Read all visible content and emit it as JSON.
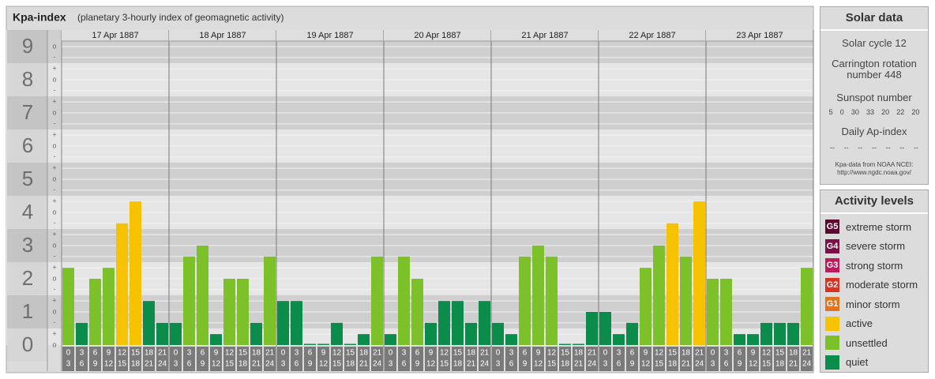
{
  "title": "Kpa-index",
  "subtitle": "(planetary 3-hourly index of geomagnetic activity)",
  "chart_data": {
    "type": "bar",
    "ylim": [
      0,
      9
    ],
    "yticks": [
      0,
      1,
      2,
      3,
      4,
      5,
      6,
      7,
      8,
      9
    ],
    "minor_yticks": [
      {
        "value": 9,
        "label": "o"
      },
      {
        "value": 8.67,
        "label": "-"
      },
      {
        "value": 8.33,
        "label": "+"
      },
      {
        "value": 8,
        "label": "o"
      },
      {
        "value": 7.67,
        "label": "-"
      },
      {
        "value": 7.33,
        "label": "+"
      },
      {
        "value": 7,
        "label": "o"
      },
      {
        "value": 6.67,
        "label": "-"
      },
      {
        "value": 6.33,
        "label": "+"
      },
      {
        "value": 6,
        "label": "o"
      },
      {
        "value": 5.67,
        "label": "-"
      },
      {
        "value": 5.33,
        "label": "+"
      },
      {
        "value": 5,
        "label": "o"
      },
      {
        "value": 4.67,
        "label": "-"
      },
      {
        "value": 4.33,
        "label": "+"
      },
      {
        "value": 4,
        "label": "o"
      },
      {
        "value": 3.67,
        "label": "-"
      },
      {
        "value": 3.33,
        "label": "+"
      },
      {
        "value": 3,
        "label": "o"
      },
      {
        "value": 2.67,
        "label": "-"
      },
      {
        "value": 2.33,
        "label": "+"
      },
      {
        "value": 2,
        "label": "o"
      },
      {
        "value": 1.67,
        "label": "-"
      },
      {
        "value": 1.33,
        "label": "+"
      },
      {
        "value": 1,
        "label": "o"
      },
      {
        "value": 0.67,
        "label": "-"
      },
      {
        "value": 0.33,
        "label": "+"
      },
      {
        "value": 0,
        "label": "o"
      }
    ],
    "hour_bins": [
      0,
      3,
      6,
      9,
      12,
      15,
      18,
      21,
      24
    ],
    "days": [
      {
        "date": "17 Apr 1887",
        "values": [
          2.33,
          0.67,
          2,
          2.33,
          3.67,
          4.33,
          1.33,
          0.67
        ],
        "colors": [
          "#7dc12a",
          "#0b8c4a",
          "#7dc12a",
          "#7dc12a",
          "#f7c300",
          "#f7c300",
          "#0b8c4a",
          "#0b8c4a"
        ]
      },
      {
        "date": "18 Apr 1887",
        "values": [
          0.67,
          2.67,
          3,
          0.33,
          2,
          2,
          0.67,
          2.67
        ],
        "colors": [
          "#0b8c4a",
          "#7dc12a",
          "#7dc12a",
          "#0b8c4a",
          "#7dc12a",
          "#7dc12a",
          "#0b8c4a",
          "#7dc12a"
        ]
      },
      {
        "date": "19 Apr 1887",
        "values": [
          1.33,
          1.33,
          0,
          0,
          0.67,
          0,
          0.33,
          2.67
        ],
        "colors": [
          "#0b8c4a",
          "#0b8c4a",
          "#0b8c4a",
          "#0b8c4a",
          "#0b8c4a",
          "#0b8c4a",
          "#0b8c4a",
          "#7dc12a"
        ]
      },
      {
        "date": "20 Apr 1887",
        "values": [
          0.33,
          2.67,
          2,
          0.67,
          1.33,
          1.33,
          0.67,
          1.33
        ],
        "colors": [
          "#0b8c4a",
          "#7dc12a",
          "#7dc12a",
          "#0b8c4a",
          "#0b8c4a",
          "#0b8c4a",
          "#0b8c4a",
          "#0b8c4a"
        ]
      },
      {
        "date": "21 Apr 1887",
        "values": [
          0.67,
          0.33,
          2.67,
          3,
          2.67,
          0,
          0,
          1
        ],
        "colors": [
          "#0b8c4a",
          "#0b8c4a",
          "#7dc12a",
          "#7dc12a",
          "#7dc12a",
          "#0b8c4a",
          "#0b8c4a",
          "#0b8c4a"
        ]
      },
      {
        "date": "22 Apr 1887",
        "values": [
          1,
          0.33,
          0.67,
          2.33,
          3,
          3.67,
          2.67,
          4.33
        ],
        "colors": [
          "#0b8c4a",
          "#0b8c4a",
          "#0b8c4a",
          "#7dc12a",
          "#7dc12a",
          "#f7c300",
          "#7dc12a",
          "#f7c300"
        ]
      },
      {
        "date": "23 Apr 1887",
        "values": [
          2,
          2,
          0.33,
          0.33,
          0.67,
          0.67,
          0.67,
          2.33
        ],
        "colors": [
          "#7dc12a",
          "#7dc12a",
          "#0b8c4a",
          "#0b8c4a",
          "#0b8c4a",
          "#0b8c4a",
          "#0b8c4a",
          "#7dc12a"
        ]
      }
    ]
  },
  "solar_data": {
    "title": "Solar data",
    "solar_cycle": "Solar cycle 12",
    "carrington": "Carrington rotation number 448",
    "sunspot_title": "Sunspot number",
    "sunspot_numbers": [
      5,
      0,
      30,
      33,
      20,
      22,
      20
    ],
    "ap_title": "Daily Ap-index",
    "ap_values": [
      "--",
      "--",
      "--",
      "--",
      "--",
      "--",
      "--"
    ],
    "source": "Kpa-data from NOAA NCEI:",
    "source_url": "http://www.ngdc.noaa.gov/"
  },
  "activity_levels": {
    "title": "Activity levels",
    "items": [
      {
        "badge": "G5",
        "label": "extreme storm",
        "color": "#5a0a2c"
      },
      {
        "badge": "G4",
        "label": "severe storm",
        "color": "#7c1046"
      },
      {
        "badge": "G3",
        "label": "strong storm",
        "color": "#c01a5c"
      },
      {
        "badge": "G2",
        "label": "moderate storm",
        "color": "#d83222"
      },
      {
        "badge": "G1",
        "label": "minor storm",
        "color": "#e07422"
      },
      {
        "badge": null,
        "label": "active",
        "color": "#f7c300"
      },
      {
        "badge": null,
        "label": "unsettled",
        "color": "#7dc12a"
      },
      {
        "badge": null,
        "label": "quiet",
        "color": "#0b8c4a"
      }
    ]
  }
}
